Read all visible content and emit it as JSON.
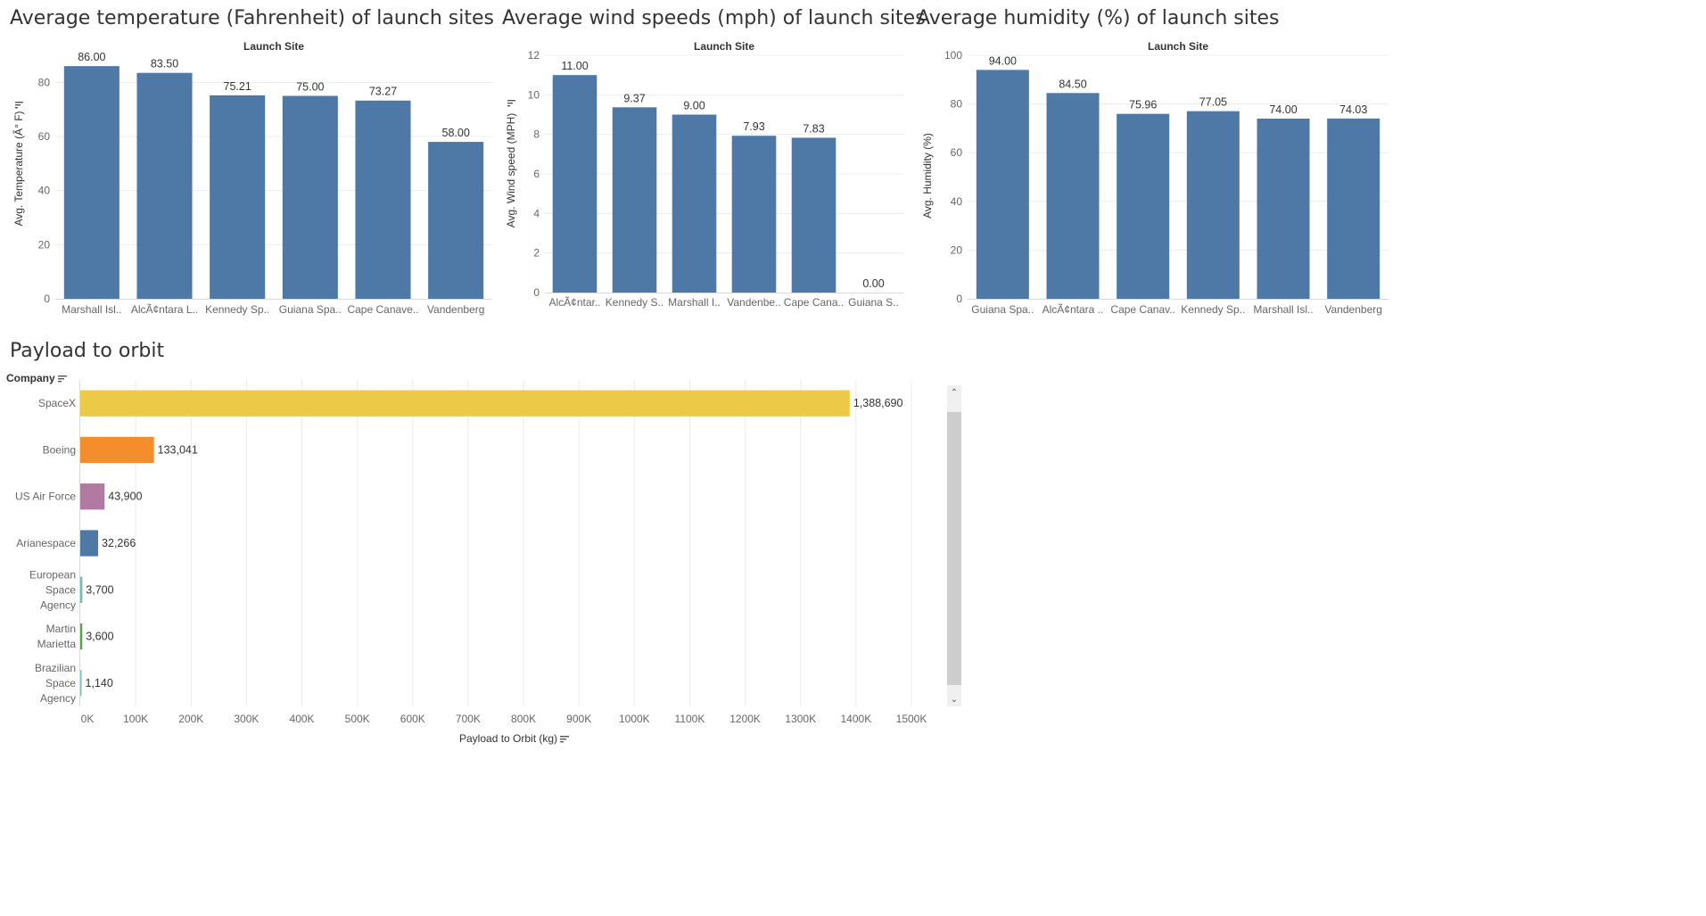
{
  "chart_data": [
    {
      "type": "bar",
      "title": "Average temperature (Fahrenheit) of launch sites",
      "column_header": "Launch Site",
      "ylabel": "Avg. Temperature (Â° F)",
      "ylim": [
        0,
        90
      ],
      "yticks": [
        0,
        20,
        40,
        60,
        80
      ],
      "categories": [
        "Marshall Isl..",
        "AlcÃ¢ntara L..",
        "Kennedy Sp..",
        "Guiana Spa..",
        "Cape Canave..",
        "Vandenberg"
      ],
      "values": [
        86.0,
        83.5,
        75.21,
        75.0,
        73.27,
        58.0
      ],
      "data_labels": [
        "86.00",
        "83.50",
        "75.21",
        "75.00",
        "73.27",
        "58.00"
      ],
      "color": "#4e79a7",
      "grid": "horizontal"
    },
    {
      "type": "bar",
      "title": "Average wind speeds (mph) of launch sites",
      "column_header": "Launch Site",
      "ylabel": "Avg. Wind speed (MPH)",
      "ylim": [
        0,
        12
      ],
      "yticks": [
        0,
        2,
        4,
        6,
        8,
        10,
        12
      ],
      "categories": [
        "AlcÃ¢ntar..",
        "Kennedy S..",
        "Marshall I..",
        "Vandenbe..",
        "Cape Cana..",
        "Guiana S.."
      ],
      "values": [
        11.0,
        9.37,
        9.0,
        7.93,
        7.83,
        0.0
      ],
      "data_labels": [
        "11.00",
        "9.37",
        "9.00",
        "7.93",
        "7.83",
        "0.00"
      ],
      "color": "#4e79a7",
      "grid": "horizontal"
    },
    {
      "type": "bar",
      "title": "Average humidity (%) of launch sites",
      "column_header": "Launch Site",
      "ylabel": "Avg. Humidity (%)",
      "ylim": [
        0,
        100
      ],
      "yticks": [
        0,
        20,
        40,
        60,
        80,
        100
      ],
      "categories": [
        "Guiana Spa..",
        "AlcÃ¢ntara ..",
        "Cape Canav..",
        "Kennedy Sp..",
        "Marshall Isl..",
        "Vandenberg"
      ],
      "values": [
        94.0,
        84.5,
        75.96,
        77.05,
        74.0,
        74.03
      ],
      "data_labels": [
        "94.00",
        "84.50",
        "75.96",
        "77.05",
        "74.00",
        "74.03"
      ],
      "color": "#4e79a7",
      "grid": "horizontal"
    },
    {
      "type": "bar",
      "orientation": "horizontal",
      "title": "Payload to orbit",
      "row_header": "Company",
      "xlabel": "Payload to Orbit (kg)",
      "xlim": [
        0,
        1500000
      ],
      "xticks": [
        0,
        100000,
        200000,
        300000,
        400000,
        500000,
        600000,
        700000,
        800000,
        900000,
        1000000,
        1100000,
        1200000,
        1300000,
        1400000,
        1500000
      ],
      "xtick_labels": [
        "0K",
        "100K",
        "200K",
        "300K",
        "400K",
        "500K",
        "600K",
        "700K",
        "800K",
        "900K",
        "1000K",
        "1100K",
        "1200K",
        "1300K",
        "1400K",
        "1500K"
      ],
      "categories": [
        [
          "SpaceX"
        ],
        [
          "Boeing"
        ],
        [
          "US Air Force"
        ],
        [
          "Arianespace"
        ],
        [
          "European",
          "Space",
          "Agency"
        ],
        [
          "Martin",
          "Marietta"
        ],
        [
          "Brazilian",
          "Space",
          "Agency"
        ]
      ],
      "values": [
        1388690,
        133041,
        43900,
        32266,
        3700,
        3600,
        1140
      ],
      "data_labels": [
        "1,388,690",
        "133,041",
        "43,900",
        "32,266",
        "3,700",
        "3,600",
        "1,140"
      ],
      "colors": [
        "#edc948",
        "#f28e2b",
        "#b07aa1",
        "#4e79a7",
        "#76b7b2",
        "#59a14f",
        "#86bcb6"
      ],
      "grid": "vertical"
    }
  ],
  "colors": {
    "gridline": "#ececec",
    "axis": "#d9d9d9",
    "tick_text": "#666666",
    "label_text": "#333333"
  },
  "icons": {
    "sort": "sort-descending-icon",
    "scroll_up": "chevron-up-icon",
    "scroll_down": "chevron-down-icon"
  }
}
